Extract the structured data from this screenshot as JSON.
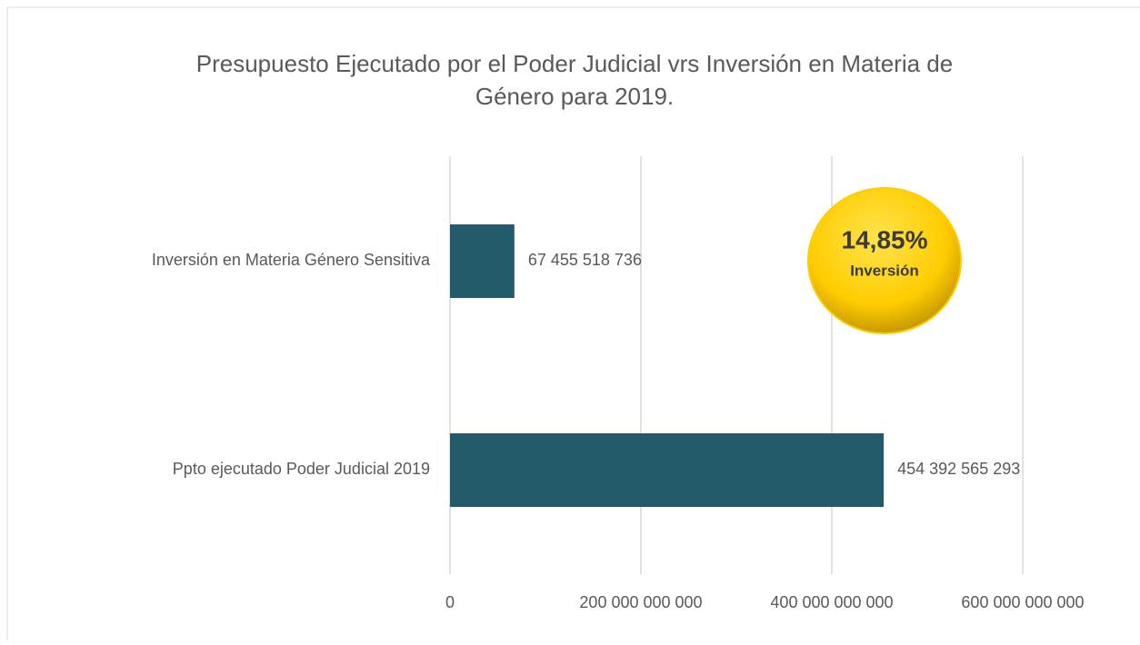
{
  "chart_data": {
    "type": "barh",
    "title": [
      "Presupuesto Ejecutado por el Poder Judicial vrs Inversión en Materia de",
      "Género para 2019."
    ],
    "categories": [
      "Inversión en Materia Género Sensitiva",
      "Ppto ejecutado Poder Judicial 2019"
    ],
    "values": [
      67455518736,
      454392565293
    ],
    "value_labels": [
      "67 455 518 736",
      "454 392 565 293"
    ],
    "color": "#225a69",
    "xlim": [
      0,
      600000000000
    ],
    "xticks": [
      0,
      {
        "value": 200000000000,
        "label": "200 000 000 000"
      },
      {
        "value": 400000000000,
        "label": "400 000 000 000"
      },
      {
        "value": 600000000000,
        "label": "600 000 000 000"
      }
    ],
    "grid": true,
    "annotation": {
      "text": "14,85%",
      "subtext": "Inversión",
      "color": "#ffcc00"
    }
  }
}
